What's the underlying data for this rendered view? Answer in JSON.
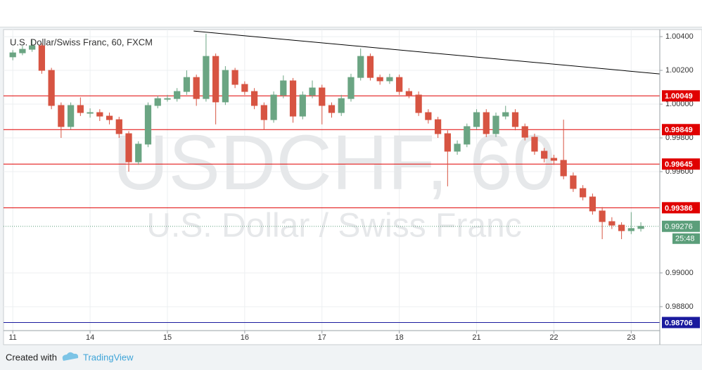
{
  "chart_data": {
    "type": "candlestick",
    "title": "U.S. Dollar/Swiss Franc, 60, FXCM",
    "watermark": {
      "symbol": "USDCHF, 60",
      "description": "U.S. Dollar / Swiss Franc"
    },
    "x": [
      0,
      0.125,
      0.25,
      0.375,
      0.5,
      0.625,
      0.75,
      0.875,
      1,
      1.125,
      1.25,
      1.375,
      1.5,
      1.625,
      1.75,
      1.875,
      2,
      2.125,
      2.25,
      2.375,
      2.5,
      2.625,
      2.75,
      2.875,
      3,
      3.125,
      3.25,
      3.375,
      3.5,
      3.625,
      3.75,
      3.875,
      4,
      4.125,
      4.25,
      4.375,
      4.5,
      4.625,
      4.75,
      4.875,
      5,
      5.125,
      5.25,
      5.375,
      5.5,
      5.625,
      5.75,
      5.875,
      6,
      6.125,
      6.25,
      6.375,
      6.5,
      6.625,
      6.75,
      6.875,
      7,
      7.125,
      7.25,
      7.375,
      7.5,
      7.625,
      7.75,
      7.875,
      8,
      8.125
    ],
    "open": [
      1.0028,
      1.00304,
      1.00325,
      1.00346,
      1.002,
      0.99992,
      0.99867,
      0.99992,
      0.9995,
      0.9995,
      0.99929,
      0.99908,
      0.99825,
      0.99658,
      0.99763,
      0.99992,
      1.00033,
      1.00033,
      1.00075,
      1.00158,
      1.00033,
      1.00283,
      1.00013,
      1.002,
      1.00117,
      1.00075,
      0.99992,
      0.99908,
      1.00054,
      1.00138,
      0.99929,
      1.00054,
      1.00096,
      0.99992,
      0.9995,
      1.00033,
      1.00158,
      1.00283,
      1.00158,
      1.00138,
      1.00158,
      1.00075,
      1.00054,
      0.9995,
      0.99908,
      0.99825,
      0.99721,
      0.99763,
      0.99867,
      0.9995,
      0.99825,
      0.99929,
      0.9995,
      0.99867,
      0.99804,
      0.99721,
      0.99679,
      0.99667,
      0.99575,
      0.995,
      0.9945,
      0.99367,
      0.99304,
      0.99283,
      0.9925,
      0.99263
    ],
    "high": [
      1.0032,
      1.00345,
      1.0038,
      1.0036,
      1.00215,
      1.0001,
      1.0001,
      1.0004,
      0.99975,
      0.9997,
      0.9995,
      0.99925,
      0.9984,
      0.9978,
      1.0001,
      1.0005,
      1.00055,
      1.00095,
      1.002,
      1.00175,
      1.00417,
      1.003,
      1.00225,
      1.00215,
      1.00135,
      1.00095,
      1.0001,
      1.00075,
      1.0017,
      1.00155,
      1.00075,
      1.0014,
      1.00115,
      1.0001,
      1.00055,
      1.0018,
      1.0033,
      1.003,
      1.00175,
      1.0018,
      1.00175,
      1.00095,
      1.00075,
      0.9997,
      0.99925,
      0.99845,
      0.99785,
      0.99885,
      0.9997,
      0.9997,
      0.9995,
      0.9999,
      0.9997,
      0.99885,
      0.99825,
      0.9974,
      0.997,
      0.99908,
      0.99595,
      0.9952,
      0.9947,
      0.9939,
      0.9933,
      0.993,
      0.9936,
      0.993
    ],
    "low": [
      1.0026,
      1.0029,
      1.0031,
      1.0018,
      0.9997,
      0.998,
      0.9985,
      0.9993,
      0.9992,
      0.999,
      0.9988,
      0.998,
      0.996,
      0.9964,
      0.99745,
      0.99975,
      1.00015,
      1.00015,
      1.00055,
      0.9999,
      1.00015,
      0.9988,
      0.99995,
      1.00095,
      1.00055,
      0.9997,
      0.99846,
      0.9989,
      1.00035,
      0.9989,
      0.9991,
      1.00035,
      0.9988,
      0.9992,
      0.9993,
      1.00015,
      1.0014,
      1.0014,
      1.00115,
      1.0012,
      1.00055,
      1.00035,
      0.9993,
      0.99885,
      0.998,
      0.99513,
      0.997,
      0.99745,
      0.9985,
      0.99805,
      0.99805,
      0.9991,
      0.99845,
      0.99785,
      0.997,
      0.99655,
      0.9964,
      0.99555,
      0.9948,
      0.9943,
      0.99345,
      0.992,
      0.9926,
      0.992,
      0.9923,
      0.99245
    ],
    "close": [
      1.00304,
      1.00325,
      1.00346,
      1.002,
      0.99992,
      0.99867,
      0.99992,
      0.9995,
      0.9995,
      0.99929,
      0.99908,
      0.99825,
      0.99658,
      0.99763,
      0.99992,
      1.00033,
      1.00033,
      1.00075,
      1.00158,
      1.00033,
      1.00283,
      1.00013,
      1.002,
      1.00117,
      1.00075,
      0.99992,
      0.99908,
      1.00054,
      1.00138,
      0.99929,
      1.00054,
      1.00096,
      0.99992,
      0.9995,
      1.00033,
      1.00158,
      1.00283,
      1.00158,
      1.00138,
      1.00158,
      1.00075,
      1.00054,
      0.9995,
      0.99908,
      0.99825,
      0.99721,
      0.99763,
      0.99867,
      0.9995,
      0.99825,
      0.99929,
      0.9995,
      0.99867,
      0.99804,
      0.99721,
      0.99679,
      0.99667,
      0.99575,
      0.995,
      0.9945,
      0.99367,
      0.99304,
      0.99283,
      0.9925,
      0.99263,
      0.99276
    ],
    "up_color": "#6ba583",
    "down_color": "#d75442",
    "xlim": [
      -0.12,
      8.37
    ],
    "xticks": [
      {
        "value": 0,
        "label": "11"
      },
      {
        "value": 1,
        "label": "14"
      },
      {
        "value": 2,
        "label": "15"
      },
      {
        "value": 3,
        "label": "16"
      },
      {
        "value": 4,
        "label": "17"
      },
      {
        "value": 5,
        "label": "18"
      },
      {
        "value": 6,
        "label": "21"
      },
      {
        "value": 7,
        "label": "22"
      },
      {
        "value": 8,
        "label": "23"
      }
    ],
    "ylim": [
      0.98583,
      1.00442
    ],
    "yticks": [
      {
        "value": 1.004,
        "label": "1.00400"
      },
      {
        "value": 1.002,
        "label": "1.00200"
      },
      {
        "value": 1,
        "label": "1.00000"
      },
      {
        "value": 0.998,
        "label": "0.99800"
      },
      {
        "value": 0.996,
        "label": "0.99600"
      },
      {
        "value": 0.99,
        "label": "0.99000"
      },
      {
        "value": 0.988,
        "label": "0.98800"
      }
    ],
    "grid": true,
    "levels": [
      {
        "value": 1.00049,
        "color": "#e00000"
      },
      {
        "value": 0.99849,
        "color": "#e00000"
      },
      {
        "value": 0.99645,
        "color": "#e00000"
      },
      {
        "value": 0.99386,
        "color": "#e00000"
      },
      {
        "value": 0.98706,
        "color": "#1a1a9e"
      }
    ],
    "trendline": {
      "x": [
        2.34,
        8.37
      ],
      "y": [
        1.00433,
        1.00179
      ],
      "color": "#000000"
    },
    "last_price": {
      "value": 0.99276,
      "countdown": "25:48",
      "color": "#5b9e7a"
    }
  },
  "footer": {
    "created_with": "Created with",
    "brand": "TradingView"
  }
}
